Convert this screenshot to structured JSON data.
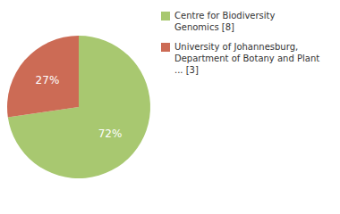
{
  "chart_data": {
    "type": "pie",
    "categories": [
      "Centre for Biodiversity\nGenomics [8]",
      "University of Johannesburg,\nDepartment of Botany and Plant\n... [3]"
    ],
    "values": [
      72,
      27
    ],
    "value_labels": [
      "72%",
      "27%"
    ],
    "colors": [
      "#a8c870",
      "#cc6b55"
    ],
    "data_labels": true,
    "legend": "right"
  }
}
